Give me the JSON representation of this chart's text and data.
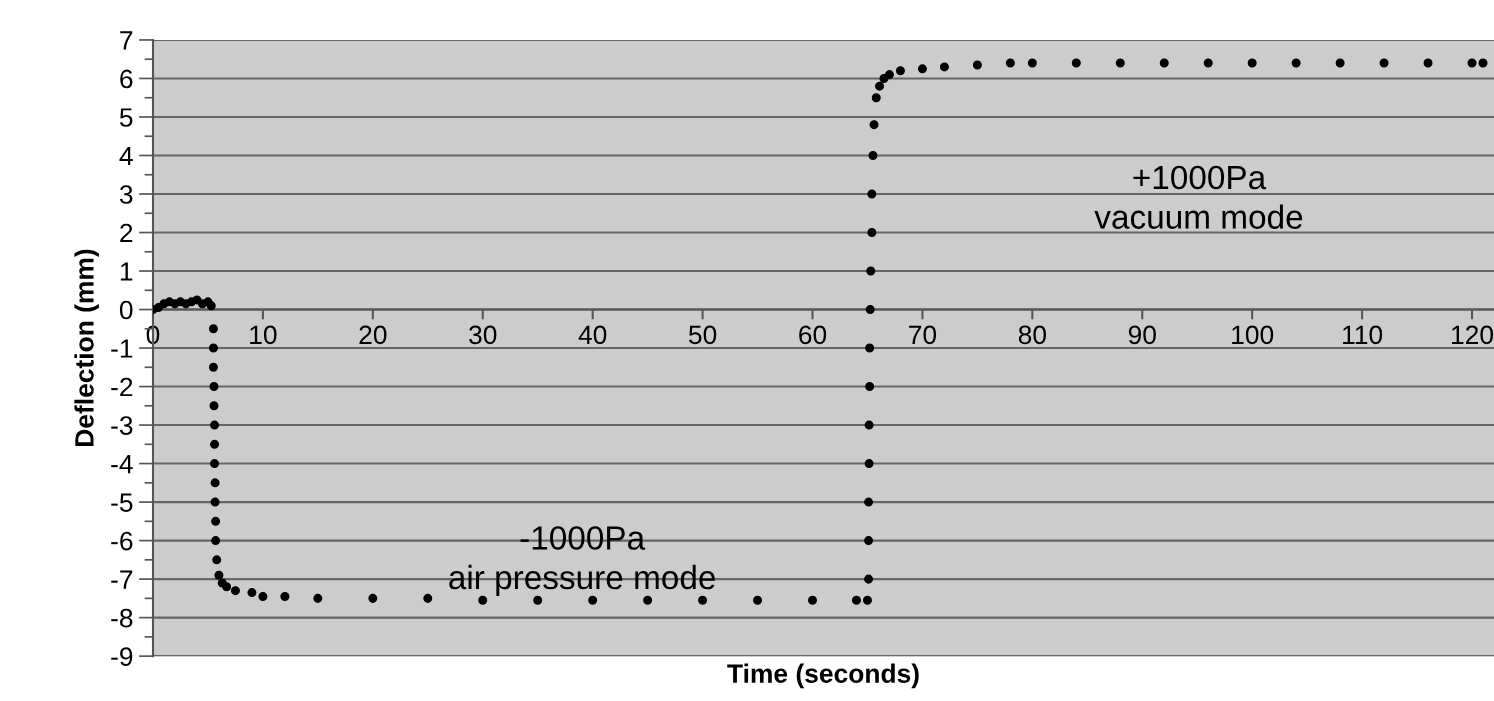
{
  "chart_data": {
    "type": "scatter",
    "xlabel": "Time (seconds)",
    "ylabel": "Deflection (mm)",
    "annotations": [
      "-1000Pa\nair pressure mode",
      "+1000Pa\nvacuum mode"
    ],
    "x": [
      0,
      0.5,
      1,
      1.5,
      2,
      2.5,
      3,
      3.5,
      4,
      4.5,
      5,
      5.3,
      5.5,
      5.5,
      5.5,
      5.55,
      5.55,
      5.6,
      5.6,
      5.6,
      5.65,
      5.65,
      5.7,
      5.7,
      5.8,
      6,
      6.3,
      6.7,
      7.5,
      9,
      10,
      12,
      15,
      20,
      25,
      30,
      35,
      40,
      45,
      50,
      55,
      60,
      64,
      65,
      65.1,
      65.1,
      65.1,
      65.15,
      65.15,
      65.2,
      65.2,
      65.25,
      65.3,
      65.4,
      65.4,
      65.5,
      65.6,
      65.8,
      66.1,
      66.5,
      67,
      68,
      70,
      72,
      75,
      78,
      80,
      84,
      88,
      92,
      96,
      100,
      104,
      108,
      112,
      116,
      120,
      121
    ],
    "series": [
      {
        "color": "#000000",
        "values": [
          0.0,
          0.05,
          0.15,
          0.2,
          0.15,
          0.2,
          0.15,
          0.2,
          0.25,
          0.15,
          0.2,
          0.1,
          -0.5,
          -1,
          -1.5,
          -2,
          -2.5,
          -3,
          -3.5,
          -4,
          -4.5,
          -5,
          -5.5,
          -6,
          -6.5,
          -6.9,
          -7.1,
          -7.2,
          -7.3,
          -7.35,
          -7.45,
          -7.45,
          -7.5,
          -7.5,
          -7.5,
          -7.55,
          -7.55,
          -7.55,
          -7.55,
          -7.55,
          -7.55,
          -7.55,
          -7.55,
          -7.55,
          -7,
          -6,
          -5,
          -4,
          -3,
          -2,
          -1,
          0,
          1,
          2,
          3,
          4,
          4.8,
          5.5,
          5.8,
          6.0,
          6.1,
          6.2,
          6.25,
          6.3,
          6.35,
          6.4,
          6.4,
          6.4,
          6.4,
          6.4,
          6.4,
          6.4,
          6.4,
          6.4,
          6.4,
          6.4,
          6.4,
          6.4
        ]
      }
    ],
    "xlim": [
      0,
      122
    ],
    "xticks": [
      0,
      10,
      20,
      30,
      40,
      50,
      60,
      70,
      80,
      90,
      100,
      110,
      120
    ],
    "ylim": [
      -9,
      7
    ],
    "yticks": [
      -9,
      -8,
      -7,
      -6,
      -5,
      -4,
      -3,
      -2,
      -1,
      0,
      1,
      2,
      3,
      4,
      5,
      6,
      7
    ],
    "grid": "y",
    "marker": "circle",
    "legend": false
  }
}
